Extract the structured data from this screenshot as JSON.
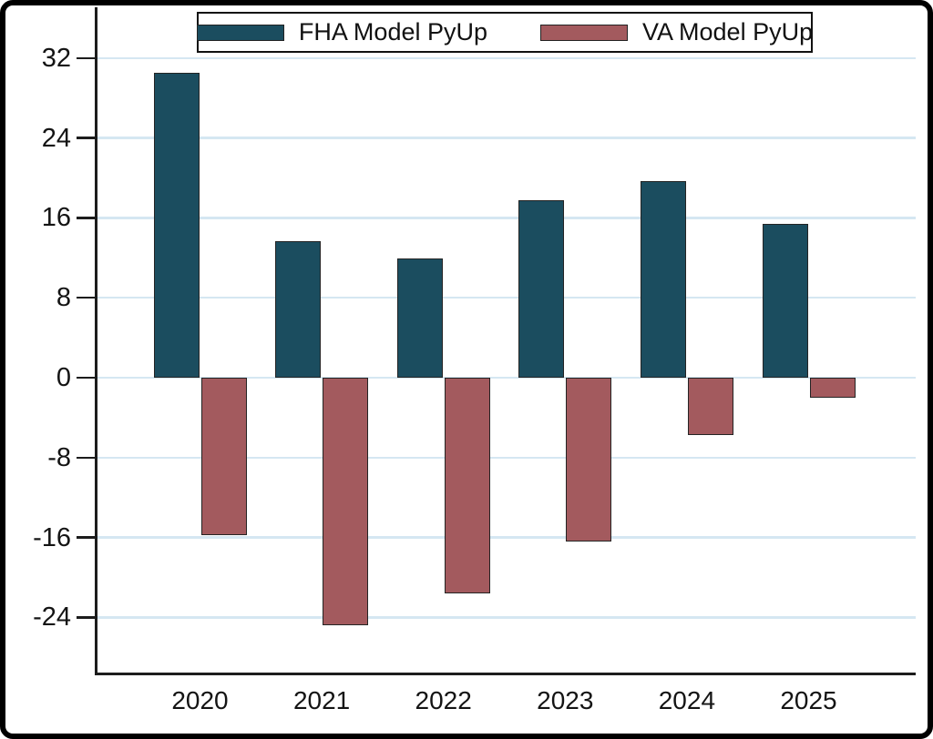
{
  "window": {
    "background": "#ffffff",
    "border_color": "#000000"
  },
  "chart_data": {
    "type": "bar",
    "title": "",
    "xlabel": "",
    "ylabel": "",
    "categories": [
      "2020",
      "2021",
      "2022",
      "2023",
      "2024",
      "2025"
    ],
    "series": [
      {
        "name": "FHA Model PyUp",
        "color": "#1b4d5f",
        "values": [
          30.5,
          13.7,
          11.9,
          17.8,
          19.7,
          15.4
        ]
      },
      {
        "name": "VA Model PyUp",
        "color": "#a35a5e",
        "values": [
          -15.8,
          -24.8,
          -21.6,
          -16.4,
          -5.7,
          -2.0
        ]
      }
    ],
    "yticks": [
      32,
      24,
      16,
      8,
      0,
      -8,
      -16,
      -24
    ],
    "ylim": [
      -29.7,
      37.1
    ],
    "grid": true,
    "gridline_color": "#d5e7f2",
    "axis_color": "#1c1c1c",
    "bar_outline_color": "#242424",
    "legend_position": "top"
  }
}
